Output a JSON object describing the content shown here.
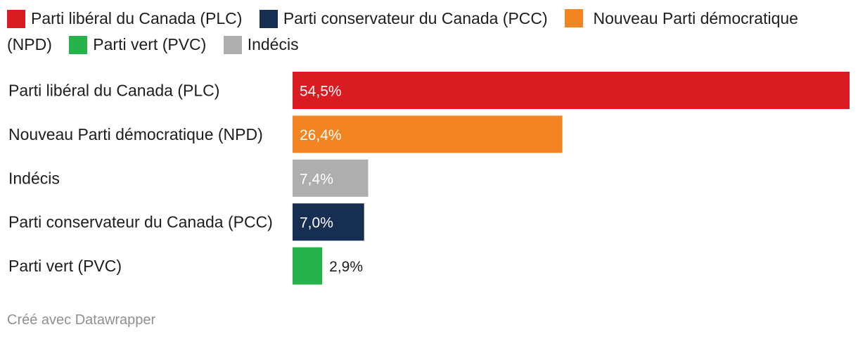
{
  "chart_data": {
    "type": "bar",
    "orientation": "horizontal",
    "categories": [
      "Parti libéral du Canada (PLC)",
      "Nouveau Parti démocratique (NPD)",
      "Indécis",
      "Parti conservateur du Canada (PCC)",
      "Parti vert (PVC)"
    ],
    "values": [
      54.5,
      26.4,
      7.4,
      7.0,
      2.9
    ],
    "value_labels": [
      "54,5%",
      "26,4%",
      "7,4%",
      "7,0%",
      "2,9%"
    ],
    "colors": [
      "#d91c22",
      "#f28522",
      "#aeaeae",
      "#152e52",
      "#27b34b"
    ],
    "xlim": [
      0,
      54.5
    ],
    "grid": false,
    "legend_placement": "top",
    "legend": [
      {
        "label": "Parti libéral du Canada (PLC)",
        "color": "#d91c22"
      },
      {
        "label": "Parti conservateur du Canada (PCC)",
        "color": "#152e52"
      },
      {
        "label": "Nouveau Parti démocratique (NPD)",
        "color": "#f28522"
      },
      {
        "label": "Parti vert (PVC)",
        "color": "#27b34b"
      },
      {
        "label": "Indécis",
        "color": "#aeaeae"
      }
    ]
  },
  "footer": {
    "credit": "Créé avec Datawrapper"
  }
}
